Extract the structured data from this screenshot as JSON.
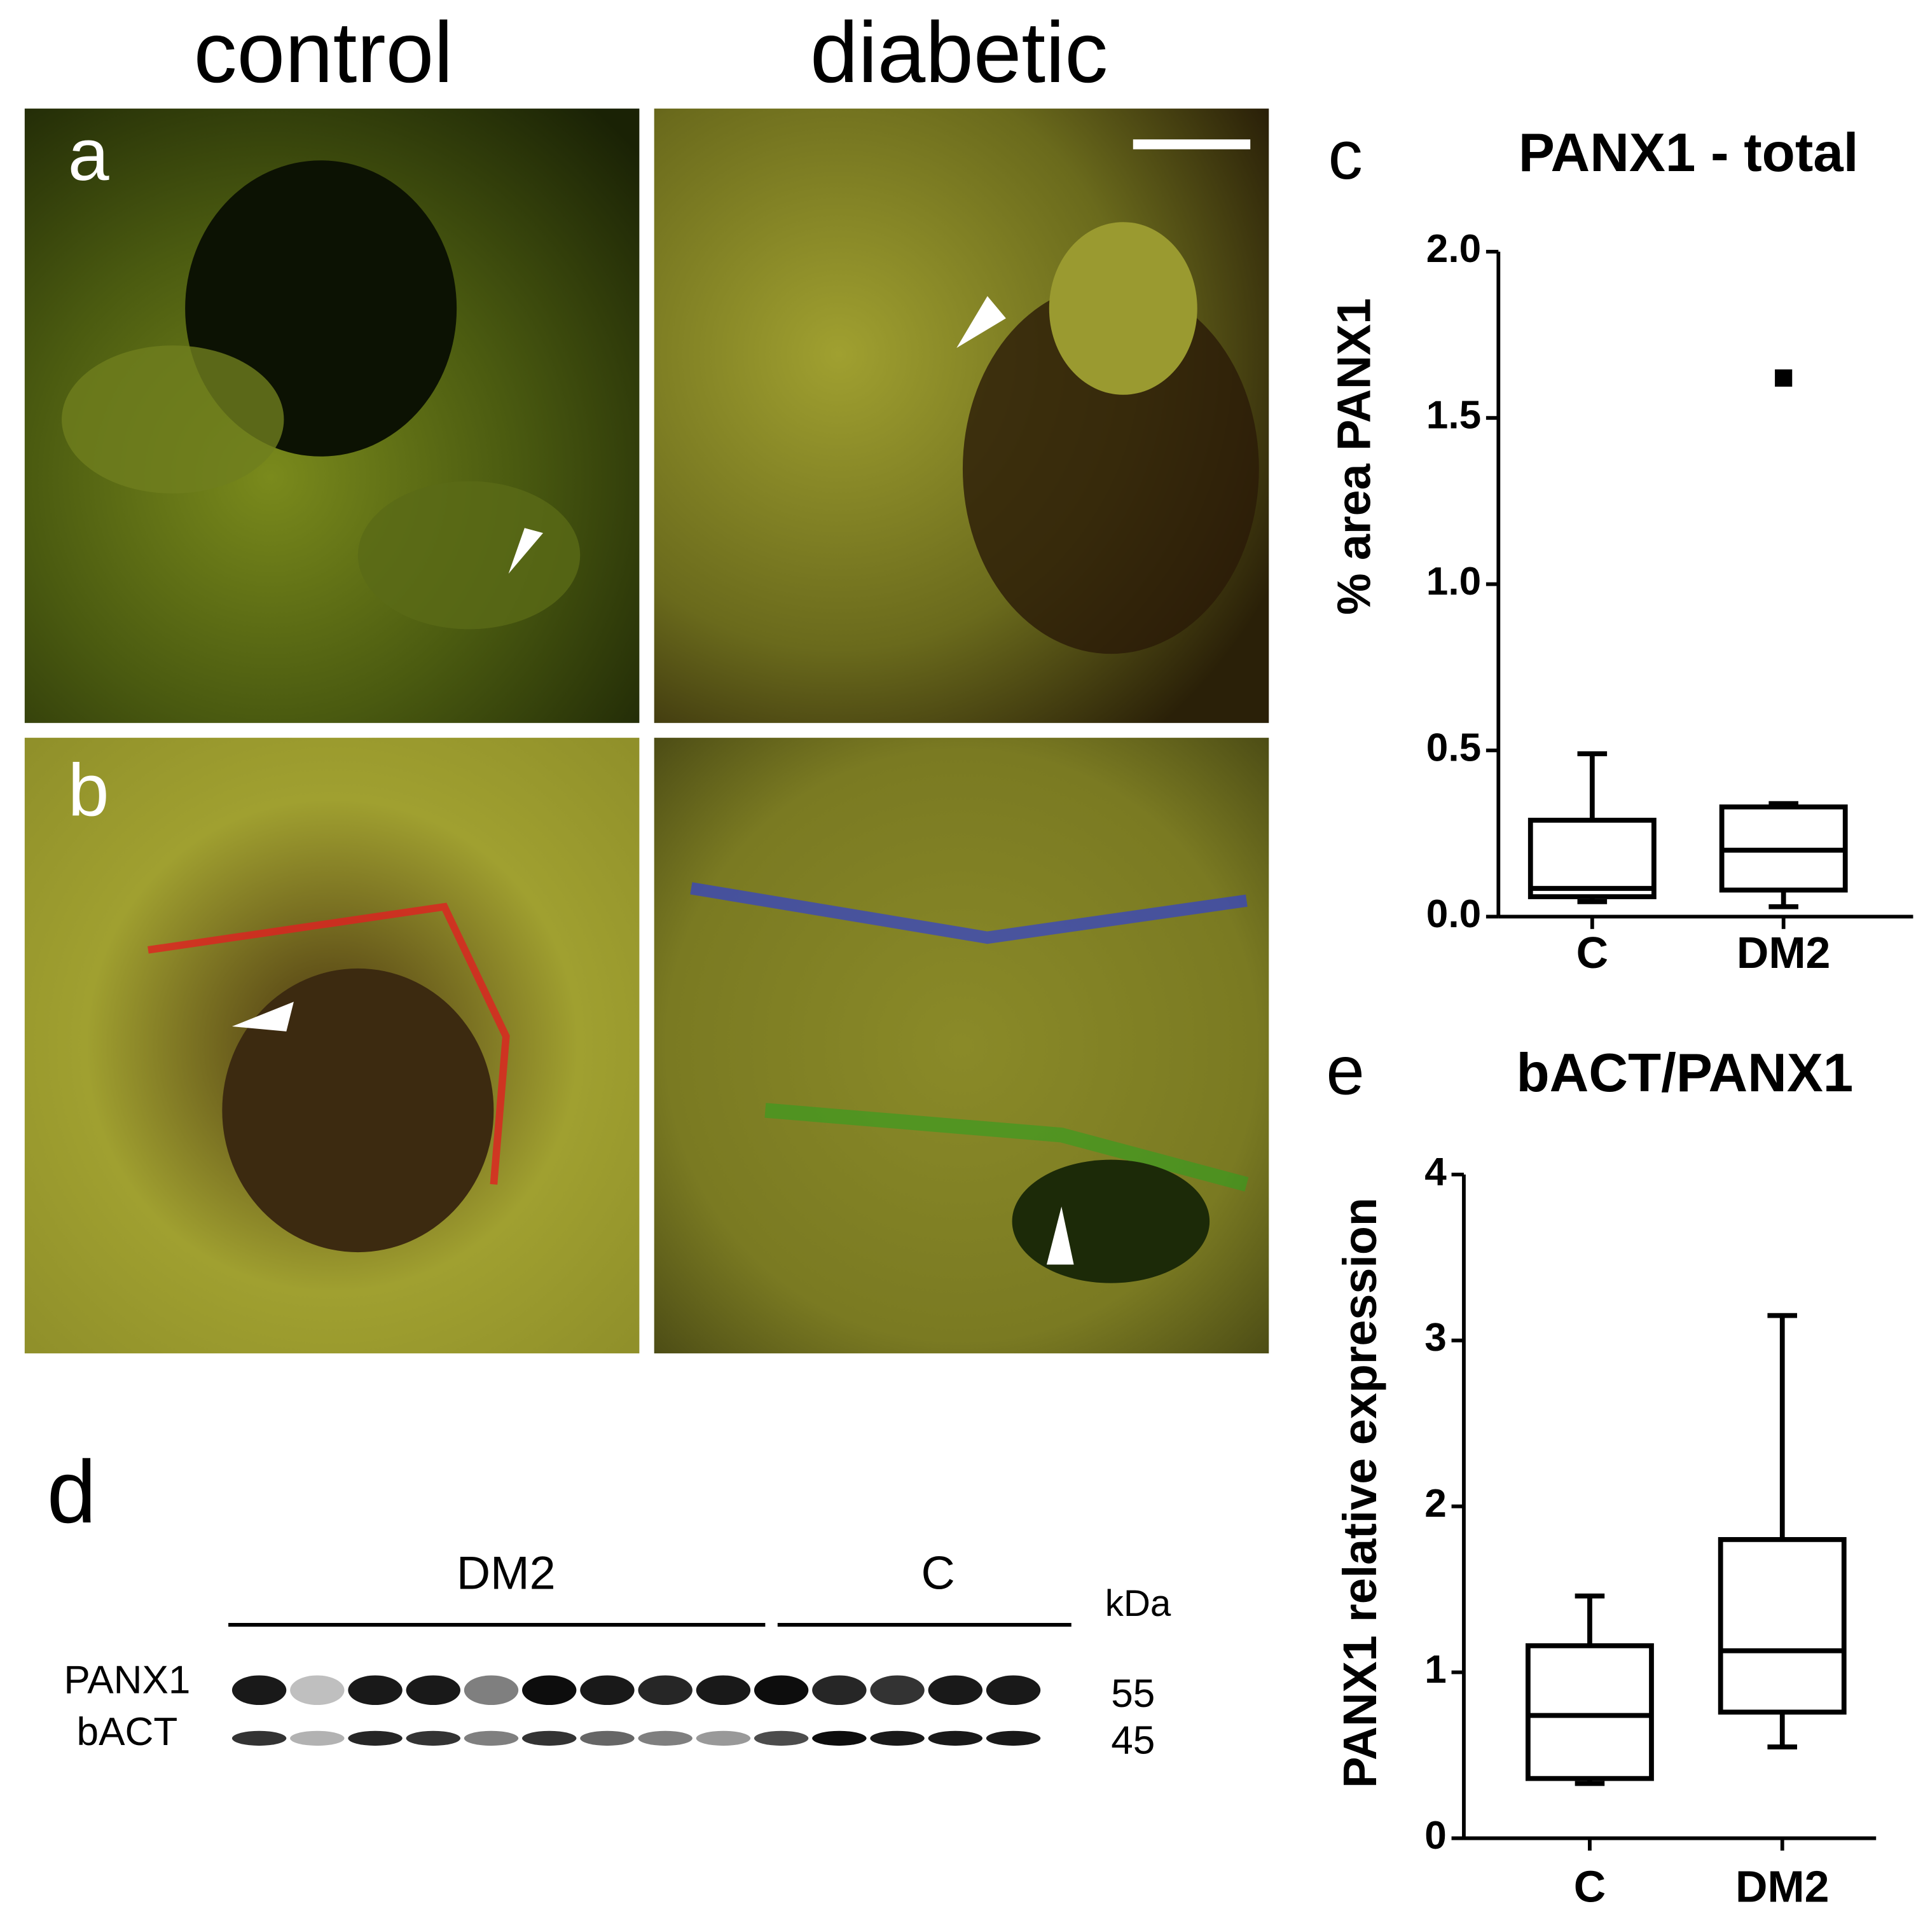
{
  "micrographs": {
    "columns": [
      "control",
      "diabetic"
    ],
    "rows": [
      "a",
      "b"
    ]
  },
  "blot": {
    "label": "d",
    "groups": [
      "DM2",
      "C"
    ],
    "unit": "kDa",
    "bands": [
      {
        "name": "PANX1",
        "size": "55"
      },
      {
        "name": "bACT",
        "size": "45"
      }
    ]
  },
  "chart_data": [
    {
      "type": "box",
      "panel_label": "c",
      "title": "PANX1 - total",
      "y_label": "% area PANX1",
      "categories": [
        "C",
        "DM2"
      ],
      "whisker_low": [
        0.045,
        0.03
      ],
      "q1": [
        0.06,
        0.08
      ],
      "median": [
        0.085,
        0.2
      ],
      "q3": [
        0.29,
        0.33
      ],
      "whisker_high": [
        0.49,
        0.34
      ],
      "outliers": [
        [],
        [
          1.62
        ]
      ],
      "ylim": [
        0,
        2
      ],
      "yticks": [
        {
          "value": 0,
          "label": "0.0"
        },
        0.5,
        {
          "value": 1,
          "label": "1.0"
        },
        1.5,
        {
          "value": 2,
          "label": "2.0"
        }
      ]
    },
    {
      "type": "box",
      "panel_label": "e",
      "title": "bACT/PANX1",
      "y_label": "PANX1 relative expression",
      "categories": [
        "C",
        "DM2"
      ],
      "whisker_low": [
        0.33,
        0.55
      ],
      "q1": [
        0.36,
        0.76
      ],
      "median": [
        0.74,
        1.13
      ],
      "q3": [
        1.16,
        1.8
      ],
      "whisker_high": [
        1.46,
        3.15
      ],
      "outliers": [
        [],
        []
      ],
      "ylim": [
        0,
        4
      ],
      "yticks": [
        0,
        1,
        2,
        3,
        4
      ]
    }
  ]
}
